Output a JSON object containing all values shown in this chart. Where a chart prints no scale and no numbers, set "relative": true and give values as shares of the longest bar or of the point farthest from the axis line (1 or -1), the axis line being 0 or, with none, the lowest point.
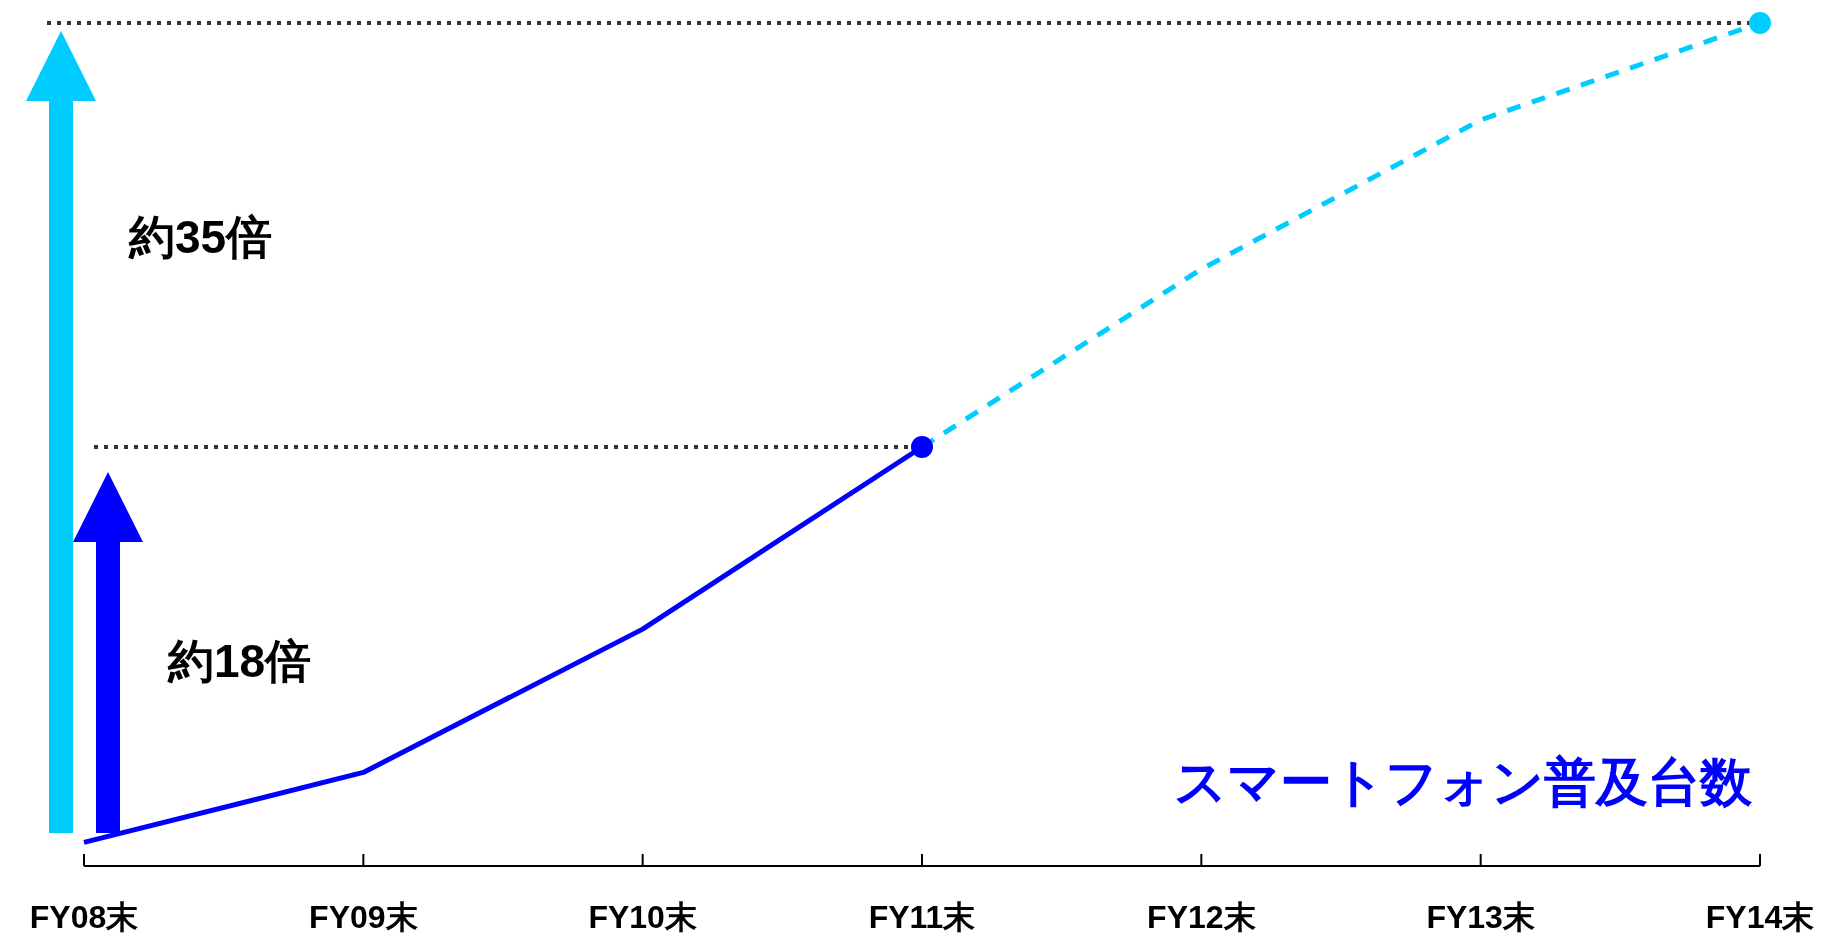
{
  "chart_data": {
    "type": "line",
    "relative": true,
    "categories": [
      "FY08末",
      "FY09末",
      "FY10末",
      "FY11末",
      "FY12末",
      "FY13末",
      "FY14末"
    ],
    "series": [
      {
        "name": "スマートフォン普及台数",
        "color": "#0000ff",
        "line_style": "solid",
        "values": [
          0.028,
          0.111,
          0.281,
          0.497,
          null,
          null,
          null
        ]
      },
      {
        "color": "#00ccff",
        "line_style": "dashed",
        "values": [
          null,
          null,
          null,
          0.497,
          0.708,
          0.885,
          1
        ]
      },
      {
        "type": "scatter",
        "marker": "circle",
        "color": "#0000ff",
        "values": [
          null,
          null,
          null,
          0.497,
          null,
          null,
          null
        ]
      },
      {
        "type": "scatter",
        "marker": "circle",
        "color": "#00ccff",
        "values": [
          null,
          null,
          null,
          null,
          null,
          null,
          1
        ]
      }
    ],
    "ref_lines": [
      {
        "axis": "y",
        "value": 1,
        "color": "#333333",
        "line_style": "dotted"
      },
      {
        "axis": "y",
        "value": 0.497,
        "color": "#333333",
        "line_style": "dotted"
      }
    ],
    "annotations": [
      "約35倍",
      "約18倍"
    ]
  }
}
